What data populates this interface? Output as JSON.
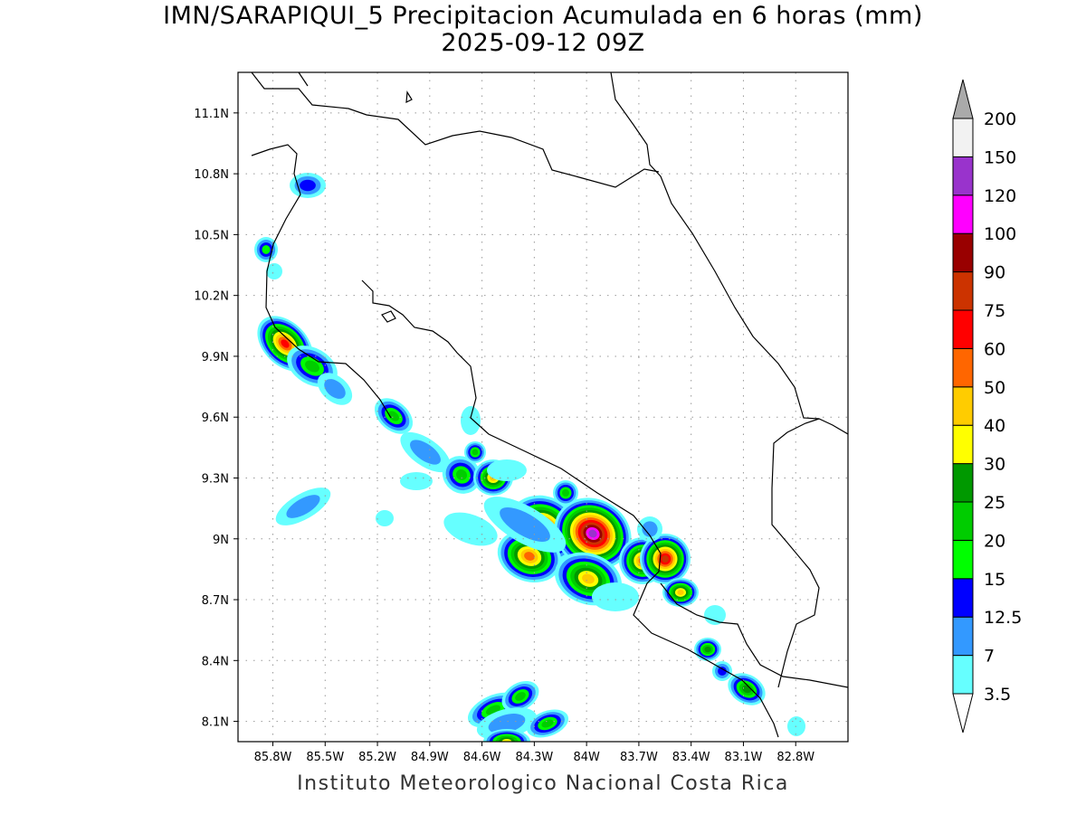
{
  "title": "IMN/SARAPIQUI_5 Precipitacion Acumulada en 6 horas (mm)",
  "subtitle": "2025-09-12 09Z",
  "footer": "Instituto Meteorologico Nacional Costa Rica",
  "map": {
    "region": "Costa Rica",
    "lon_range": [
      -86.0,
      -82.5
    ],
    "lat_range": [
      8.0,
      11.3
    ],
    "grid": true,
    "lon_ticks": [
      "85.8W",
      "85.5W",
      "85.2W",
      "84.9W",
      "84.6W",
      "84.3W",
      "84W",
      "83.7W",
      "83.4W",
      "83.1W",
      "82.8W"
    ],
    "lon_values": [
      -85.8,
      -85.5,
      -85.2,
      -84.9,
      -84.6,
      -84.3,
      -84.0,
      -83.7,
      -83.4,
      -83.1,
      -82.8
    ],
    "lat_ticks": [
      "11.1N",
      "10.8N",
      "10.5N",
      "10.2N",
      "9.9N",
      "9.6N",
      "9.3N",
      "9N",
      "8.7N",
      "8.4N",
      "8.1N"
    ],
    "lat_values": [
      11.1,
      10.8,
      10.5,
      10.2,
      9.9,
      9.6,
      9.3,
      9.0,
      8.7,
      8.4,
      8.1
    ]
  },
  "colorbar": {
    "labels": [
      "3.5",
      "7",
      "12.5",
      "15",
      "20",
      "25",
      "30",
      "40",
      "50",
      "60",
      "75",
      "90",
      "100",
      "120",
      "150",
      "200"
    ],
    "colors": [
      "#ffffff",
      "#66ffff",
      "#3399ff",
      "#0000ff",
      "#00ff00",
      "#00cc00",
      "#009900",
      "#ffff00",
      "#ffcc00",
      "#ff6600",
      "#ff0000",
      "#cc3300",
      "#990000",
      "#ff00ff",
      "#9933cc",
      "#f2f2f2",
      "#aaaaaa"
    ]
  }
}
